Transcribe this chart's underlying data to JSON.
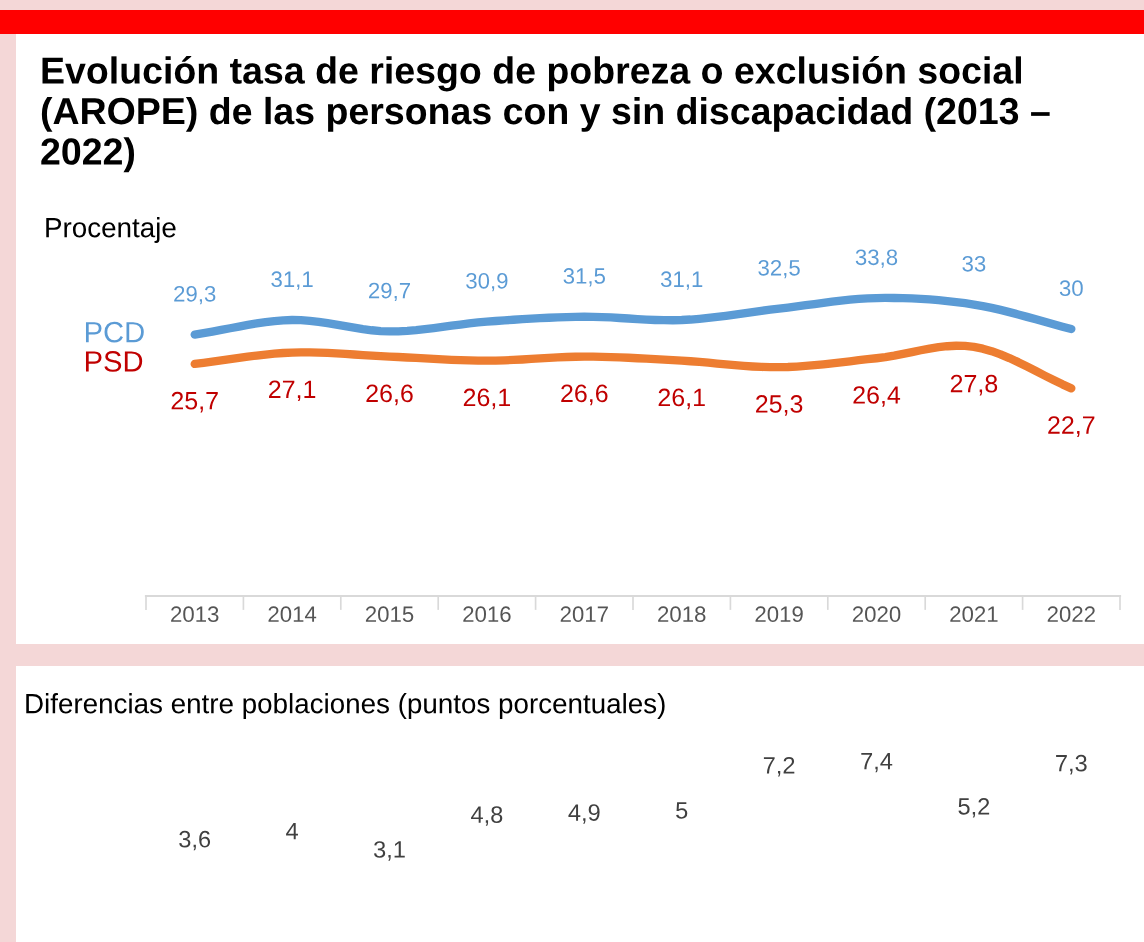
{
  "chart_data": [
    {
      "type": "line",
      "title": "Evolución tasa de riesgo de pobreza o exclusión social (AROPE) de las personas con y sin discapacidad (2013 – 2022)",
      "ylabel": "Procentaje",
      "categories": [
        "2013",
        "2014",
        "2015",
        "2016",
        "2017",
        "2018",
        "2019",
        "2020",
        "2021",
        "2022"
      ],
      "series": [
        {
          "name": "PCD",
          "color": "#5b9bd5",
          "values": [
            29.3,
            31.1,
            29.7,
            30.9,
            31.5,
            31.1,
            32.5,
            33.8,
            33,
            30
          ],
          "value_labels": [
            "29,3",
            "31,1",
            "29,7",
            "30,9",
            "31,5",
            "31,1",
            "32,5",
            "33,8",
            "33",
            "30"
          ]
        },
        {
          "name": "PSD",
          "color": "#ed7d31",
          "values": [
            25.7,
            27.1,
            26.6,
            26.1,
            26.6,
            26.1,
            25.3,
            26.4,
            27.8,
            22.7
          ],
          "value_labels": [
            "25,7",
            "27,1",
            "26,6",
            "26,1",
            "26,6",
            "26,1",
            "25,3",
            "26,4",
            "27,8",
            "22,7"
          ]
        }
      ],
      "legend": false,
      "grid": false,
      "marker": "none",
      "line_style": "solid",
      "tick_labels": "x"
    },
    {
      "type": "other",
      "title": "Diferencias entre poblaciones (puntos porcentuales)",
      "categories": [
        null,
        null,
        null,
        null,
        null,
        null,
        null,
        null,
        null,
        null
      ],
      "annotations": [
        "3,6",
        "4",
        "3,1",
        "4,8",
        "4,9",
        "5",
        "7,2",
        "7,4",
        "5,2",
        "7,3"
      ]
    }
  ]
}
